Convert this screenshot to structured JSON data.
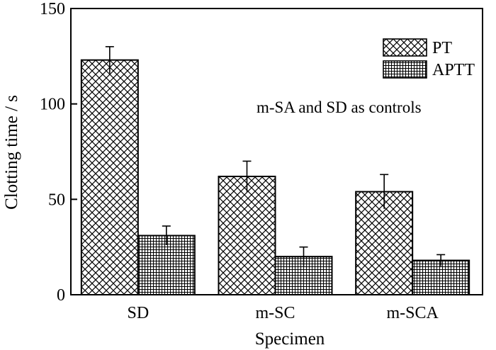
{
  "chart_data": {
    "type": "bar",
    "categories": [
      "SD",
      "m-SC",
      "m-SCA"
    ],
    "series": [
      {
        "name": "PT",
        "values": [
          123,
          62,
          54
        ],
        "errors": [
          7,
          8,
          9
        ],
        "pattern": "crosshatch"
      },
      {
        "name": "APTT",
        "values": [
          31,
          20,
          18
        ],
        "errors": [
          5,
          5,
          3
        ],
        "pattern": "grid"
      }
    ],
    "xlabel": "Specimen",
    "ylabel": "Clotting time / s",
    "ylim": [
      0,
      150
    ],
    "yticks": [
      0,
      50,
      100,
      150
    ],
    "annotation": "m-SA and SD as controls",
    "legend_position": "top-right",
    "grid": false,
    "colors": {
      "bar_stroke": "#000000",
      "background": "#ffffff"
    }
  }
}
